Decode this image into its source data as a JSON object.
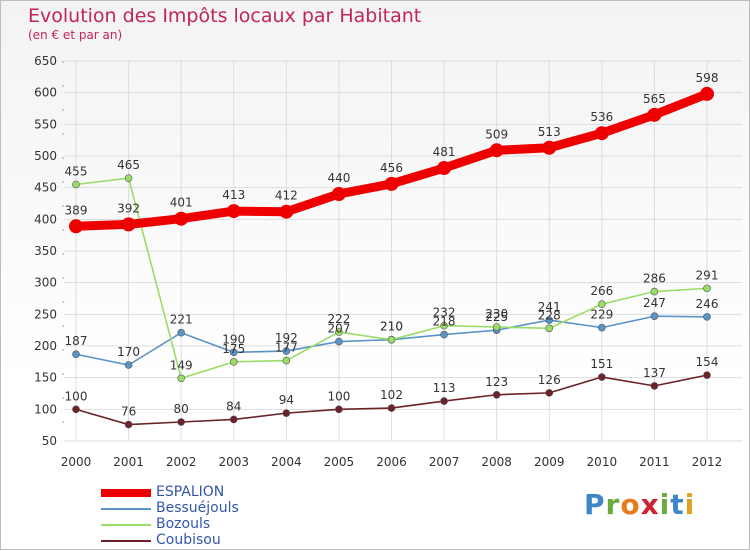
{
  "header": {
    "title": "Evolution des Impôts locaux par Habitant",
    "subtitle": "(en € et par an)"
  },
  "logo": {
    "text": "Proxiti",
    "letters": [
      "P",
      "r",
      "o",
      "x",
      "i",
      "t",
      "i"
    ],
    "colors": [
      "#3d87c8",
      "#6bab3b",
      "#e87a1c",
      "#cc2233",
      "#6bab3b",
      "#3d87c8",
      "#e0a020"
    ]
  },
  "chart_data": {
    "type": "line",
    "categories": [
      "2000",
      "2001",
      "2002",
      "2003",
      "2004",
      "2005",
      "2006",
      "2007",
      "2008",
      "2009",
      "2010",
      "2011",
      "2012"
    ],
    "ylim": [
      50,
      650
    ],
    "yticks": [
      50,
      100,
      150,
      200,
      250,
      300,
      350,
      400,
      450,
      500,
      550,
      600,
      650
    ],
    "grid": true,
    "legend_position": "bottom-left",
    "series": [
      {
        "name": "ESPALION",
        "color": "#ee0000",
        "values": [
          389,
          392,
          401,
          413,
          412,
          440,
          456,
          481,
          509,
          513,
          536,
          565,
          598
        ]
      },
      {
        "name": "Bessuéjouls",
        "color": "#5b93c7",
        "values": [
          187,
          170,
          221,
          190,
          192,
          207,
          210,
          218,
          225,
          241,
          229,
          247,
          246
        ]
      },
      {
        "name": "Bozouls",
        "color": "#99dd66",
        "values": [
          455,
          465,
          149,
          175,
          177,
          222,
          210,
          232,
          230,
          228,
          266,
          286,
          291
        ]
      },
      {
        "name": "Coubisou",
        "color": "#6b2229",
        "values": [
          100,
          76,
          80,
          84,
          94,
          100,
          102,
          113,
          123,
          126,
          151,
          137,
          154
        ]
      }
    ]
  }
}
